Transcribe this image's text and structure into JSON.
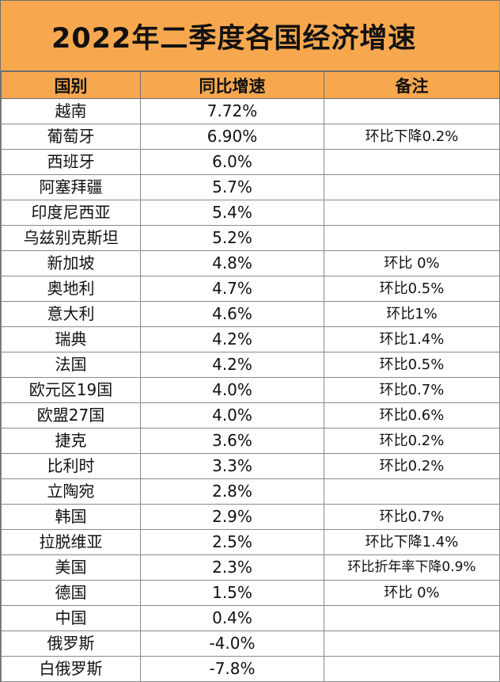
{
  "title": "2022年二季度各国经济增速",
  "headers": [
    "国别",
    "同比增速",
    "备注"
  ],
  "rows": [
    {
      "country": "越南",
      "growth": "7.72%",
      "note": ""
    },
    {
      "country": "葡萄牙",
      "growth": "6.90%",
      "note": "环比下降0.2%"
    },
    {
      "country": "西班牙",
      "growth": "6.0%",
      "note": ""
    },
    {
      "country": "阿塞拜疆",
      "growth": "5.7%",
      "note": ""
    },
    {
      "country": "印度尼西亚",
      "growth": "5.4%",
      "note": ""
    },
    {
      "country": "乌兹别克斯坦",
      "growth": "5.2%",
      "note": ""
    },
    {
      "country": "新加坡",
      "growth": "4.8%",
      "note": "环比 0%"
    },
    {
      "country": "奥地利",
      "growth": "4.7%",
      "note": "环比0.5%"
    },
    {
      "country": "意大利",
      "growth": "4.6%",
      "note": "环比1%"
    },
    {
      "country": "瑞典",
      "growth": "4.2%",
      "note": "环比1.4%"
    },
    {
      "country": "法国",
      "growth": "4.2%",
      "note": "环比0.5%"
    },
    {
      "country": "欧元区19国",
      "growth": "4.0%",
      "note": "环比0.7%"
    },
    {
      "country": "欧盟27国",
      "growth": "4.0%",
      "note": "环比0.6%"
    },
    {
      "country": "捷克",
      "growth": "3.6%",
      "note": "环比0.2%"
    },
    {
      "country": "比利时",
      "growth": "3.3%",
      "note": "环比0.2%"
    },
    {
      "country": "立陶宛",
      "growth": "2.8%",
      "note": ""
    },
    {
      "country": "韩国",
      "growth": "2.9%",
      "note": "环比0.7%"
    },
    {
      "country": "拉脱维亚",
      "growth": "2.5%",
      "note": "环比下降1.4%"
    },
    {
      "country": "美国",
      "growth": "2.3%",
      "note": "环比折年率下降0.9%"
    },
    {
      "country": "德国",
      "growth": "1.5%",
      "note": "环比 0%"
    },
    {
      "country": "中国",
      "growth": "0.4%",
      "note": ""
    },
    {
      "country": "俄罗斯",
      "growth": "-4.0%",
      "note": ""
    },
    {
      "country": "白俄罗斯",
      "growth": "-7.8%",
      "note": ""
    }
  ]
}
